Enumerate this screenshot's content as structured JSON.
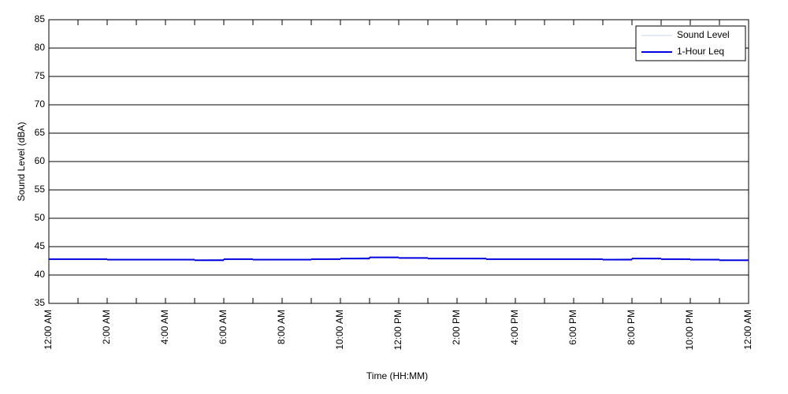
{
  "chart_data": {
    "type": "line",
    "y_label": "Sound Level (dBA)",
    "x_label": "Time (HH:MM)",
    "xlim": [
      0,
      24
    ],
    "xticks": [
      {
        "value": 0,
        "label": "12:00 AM"
      },
      {
        "value": 1,
        "label": null
      },
      {
        "value": 2,
        "label": "2:00 AM"
      },
      {
        "value": 3,
        "label": null
      },
      {
        "value": 4,
        "label": "4:00 AM"
      },
      {
        "value": 5,
        "label": null
      },
      {
        "value": 6,
        "label": "6:00 AM"
      },
      {
        "value": 7,
        "label": null
      },
      {
        "value": 8,
        "label": "8:00 AM"
      },
      {
        "value": 9,
        "label": null
      },
      {
        "value": 10,
        "label": "10:00 AM"
      },
      {
        "value": 11,
        "label": null
      },
      {
        "value": 12,
        "label": "12:00 PM"
      },
      {
        "value": 13,
        "label": null
      },
      {
        "value": 14,
        "label": "2:00 PM"
      },
      {
        "value": 15,
        "label": null
      },
      {
        "value": 16,
        "label": "4:00 PM"
      },
      {
        "value": 17,
        "label": null
      },
      {
        "value": 18,
        "label": "6:00 PM"
      },
      {
        "value": 19,
        "label": null
      },
      {
        "value": 20,
        "label": "8:00 PM"
      },
      {
        "value": 21,
        "label": null
      },
      {
        "value": 22,
        "label": "10:00 PM"
      },
      {
        "value": 23,
        "label": null
      },
      {
        "value": 24,
        "label": "12:00 AM"
      }
    ],
    "ylim": [
      35,
      85
    ],
    "yticks": [
      35,
      40,
      45,
      50,
      55,
      60,
      65,
      70,
      75,
      80,
      85
    ],
    "grid": true,
    "legend": "upper right",
    "series": [
      {
        "name": "Sound Level",
        "color": "#c8d4e8",
        "drawstyle": "default",
        "x": [
          0,
          1,
          2,
          3,
          4,
          5,
          6,
          7,
          8,
          9,
          10,
          11,
          12,
          13,
          14,
          15,
          16,
          17,
          18,
          19,
          20,
          21,
          22,
          23,
          24
        ],
        "values": [
          42.8,
          42.8,
          42.8,
          42.7,
          42.7,
          42.6,
          42.8,
          42.7,
          42.7,
          42.8,
          42.9,
          43.1,
          43.0,
          42.9,
          42.9,
          42.8,
          42.8,
          42.8,
          42.8,
          42.7,
          42.9,
          42.8,
          42.7,
          42.6,
          42.6
        ]
      },
      {
        "name": "1-Hour Leq",
        "color": "#0000e0",
        "drawstyle": "steps-post",
        "x": [
          0,
          1,
          2,
          3,
          4,
          5,
          6,
          7,
          8,
          9,
          10,
          11,
          12,
          13,
          14,
          15,
          16,
          17,
          18,
          19,
          20,
          21,
          22,
          23
        ],
        "values": [
          42.8,
          42.8,
          42.7,
          42.7,
          42.7,
          42.6,
          42.8,
          42.7,
          42.7,
          42.8,
          42.9,
          43.1,
          43.0,
          42.9,
          42.9,
          42.8,
          42.8,
          42.8,
          42.8,
          42.7,
          42.9,
          42.8,
          42.7,
          42.6
        ]
      }
    ]
  }
}
